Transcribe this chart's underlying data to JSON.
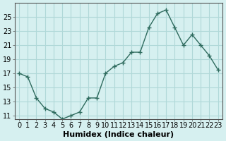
{
  "x": [
    0,
    1,
    2,
    3,
    4,
    5,
    6,
    7,
    8,
    9,
    10,
    11,
    12,
    13,
    14,
    15,
    16,
    17,
    18,
    19,
    20,
    21,
    22,
    23
  ],
  "y": [
    17,
    16.5,
    13.5,
    12,
    11.5,
    10.5,
    11,
    11.5,
    13.5,
    13.5,
    17,
    18,
    18.5,
    20,
    20,
    23.5,
    25.5,
    26,
    23.5,
    21,
    22.5,
    21,
    19.5,
    17.5
  ],
  "line_color": "#2e6b5e",
  "marker": "+",
  "marker_size": 4,
  "bg_color": "#d6f0f0",
  "grid_color": "#b0d8d8",
  "xlabel": "Humidex (Indice chaleur)",
  "ylabel_ticks": [
    11,
    13,
    15,
    17,
    19,
    21,
    23,
    25
  ],
  "xlim": [
    -0.5,
    23.5
  ],
  "ylim": [
    10.5,
    27
  ],
  "xticks": [
    0,
    1,
    2,
    3,
    4,
    5,
    6,
    7,
    8,
    9,
    10,
    11,
    12,
    13,
    14,
    15,
    16,
    17,
    18,
    19,
    20,
    21,
    22,
    23
  ],
  "tick_label_fontsize": 7,
  "xlabel_fontsize": 8
}
